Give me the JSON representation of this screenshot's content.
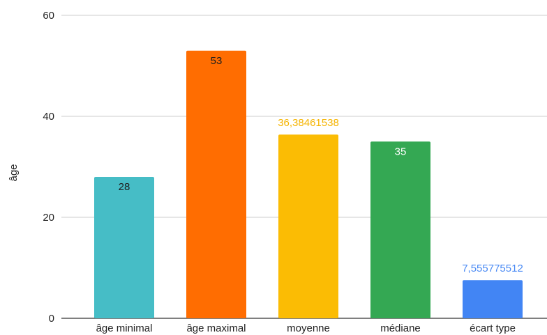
{
  "chart_data": {
    "type": "bar",
    "title": "",
    "xlabel": "",
    "ylabel": "âge",
    "ylim": [
      0,
      60
    ],
    "y_ticks": [
      0,
      20,
      40,
      60
    ],
    "y_tick_labels": [
      "0",
      "20",
      "40",
      "60"
    ],
    "grid": true,
    "legend": "none",
    "categories": [
      "âge minimal",
      "âge maximal",
      "moyenne",
      "médiane",
      "écart type"
    ],
    "values": [
      28,
      53,
      36.38461538,
      35,
      7.555775512
    ],
    "data_labels": [
      "28",
      "53",
      "36,38461538",
      "35",
      "7,555775512"
    ],
    "data_label_positions": [
      "inside",
      "inside",
      "outside",
      "inside",
      "outside"
    ],
    "colors": [
      "#46bdc6",
      "#ff6d01",
      "#fbbc04",
      "#34a853",
      "#4285f4"
    ],
    "data_label_colors": [
      "#1f1f1f",
      "#1f1f1f",
      "#f5b400",
      "#ffffff",
      "#4a8af4"
    ],
    "axis_text_color": "#222222",
    "grid_color": "#cccccc"
  }
}
